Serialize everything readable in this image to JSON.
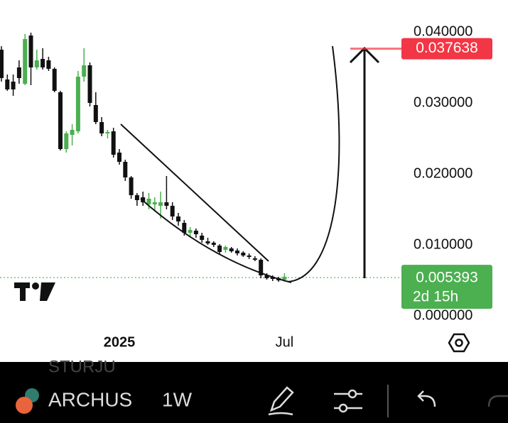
{
  "chart_data": {
    "type": "candlestick",
    "categories": [
      null,
      null,
      null,
      null,
      null,
      null,
      null,
      null,
      null,
      null,
      null,
      null,
      null,
      null,
      null,
      null,
      null,
      null,
      null,
      null,
      "2025",
      null,
      null,
      null,
      null,
      null,
      null,
      null,
      null,
      null,
      null,
      null,
      null,
      null,
      null,
      null,
      null,
      null,
      null,
      null,
      null,
      null,
      null,
      null,
      null,
      null,
      null,
      null,
      "Jul"
    ],
    "open": [
      0.0375,
      0.0333,
      0.033,
      0.035,
      0.0327,
      0.0395,
      0.035,
      0.0362,
      0.036,
      0.0348,
      0.0315,
      0.0235,
      0.0255,
      0.026,
      0.0337,
      0.0353,
      0.0297,
      0.0273,
      0.0257,
      0.026,
      0.023,
      0.0217,
      0.0195,
      0.017,
      0.0167,
      0.0157,
      0.0157,
      0.0155,
      0.016,
      0.0155,
      0.014,
      0.0131,
      0.0117,
      0.012,
      0.0113,
      0.0105,
      0.0103,
      0.0099,
      0.0093,
      0.0095,
      0.0092,
      0.0089,
      0.0085,
      0.0081,
      0.0079,
      0.0057,
      0.0055,
      0.0053,
      0.0051
    ],
    "high": [
      0.038,
      0.034,
      0.034,
      0.036,
      0.0397,
      0.0399,
      0.0375,
      0.0377,
      0.0365,
      0.035,
      0.0317,
      0.026,
      0.027,
      0.0345,
      0.0377,
      0.0357,
      0.0315,
      0.028,
      0.0262,
      0.0265,
      0.0235,
      0.022,
      0.0197,
      0.0173,
      0.0175,
      0.0173,
      0.0167,
      0.0175,
      0.0197,
      0.016,
      0.0145,
      0.0135,
      0.0125,
      0.0123,
      0.0117,
      0.011,
      0.0105,
      0.0101,
      0.0099,
      0.0097,
      0.0095,
      0.0091,
      0.0088,
      0.0084,
      0.0081,
      0.006,
      0.0057,
      0.0055,
      0.006
    ],
    "low": [
      0.033,
      0.0317,
      0.031,
      0.0327,
      0.0325,
      0.0325,
      0.0347,
      0.0347,
      0.0345,
      0.0315,
      0.0233,
      0.023,
      0.024,
      0.0257,
      0.033,
      0.0295,
      0.027,
      0.0253,
      0.025,
      0.0223,
      0.0213,
      0.019,
      0.0165,
      0.0155,
      0.0155,
      0.015,
      0.0147,
      0.0137,
      0.015,
      0.0135,
      0.0127,
      0.0113,
      0.0112,
      0.011,
      0.0103,
      0.01,
      0.0097,
      0.0087,
      0.0089,
      0.0089,
      0.0085,
      0.0083,
      0.008,
      0.0077,
      0.0053,
      0.0051,
      0.0049,
      0.0048,
      0.0048
    ],
    "close": [
      0.0335,
      0.0319,
      0.0319,
      0.0335,
      0.039,
      0.035,
      0.036,
      0.035,
      0.0348,
      0.0317,
      0.0235,
      0.0257,
      0.0262,
      0.0337,
      0.0353,
      0.03,
      0.0273,
      0.0257,
      0.0259,
      0.0227,
      0.0217,
      0.0195,
      0.017,
      0.0163,
      0.016,
      0.0165,
      0.016,
      0.016,
      0.0155,
      0.014,
      0.0133,
      0.0117,
      0.0121,
      0.0115,
      0.0107,
      0.0102,
      0.01,
      0.009,
      0.0097,
      0.0091,
      0.0088,
      0.0085,
      0.0083,
      0.0079,
      0.0057,
      0.0053,
      0.0052,
      0.005,
      0.0055
    ],
    "up_color": "#4caf50",
    "down_color": "#111111",
    "ylim": [
      -0.002,
      0.0445
    ],
    "yticks": [
      {
        "value": 0,
        "label": "0.000000"
      },
      {
        "value": 0.01,
        "label": "0.010000"
      },
      {
        "value": 0.02,
        "label": "0.020000"
      },
      {
        "value": 0.03,
        "label": "0.030000"
      },
      {
        "value": 0.04,
        "label": "0.040000"
      }
    ],
    "target_price": {
      "value": 0.037638,
      "label": "0.037638"
    },
    "target_color": "#f23645",
    "last_price": {
      "value": 0.005393,
      "label": "0.005393"
    },
    "last_price_color": "#4caf50",
    "countdown": "2d 15h"
  },
  "toolbar": {
    "ghost_symbol": "STURJU",
    "symbol": "ARCHUS",
    "interval": "1W"
  }
}
